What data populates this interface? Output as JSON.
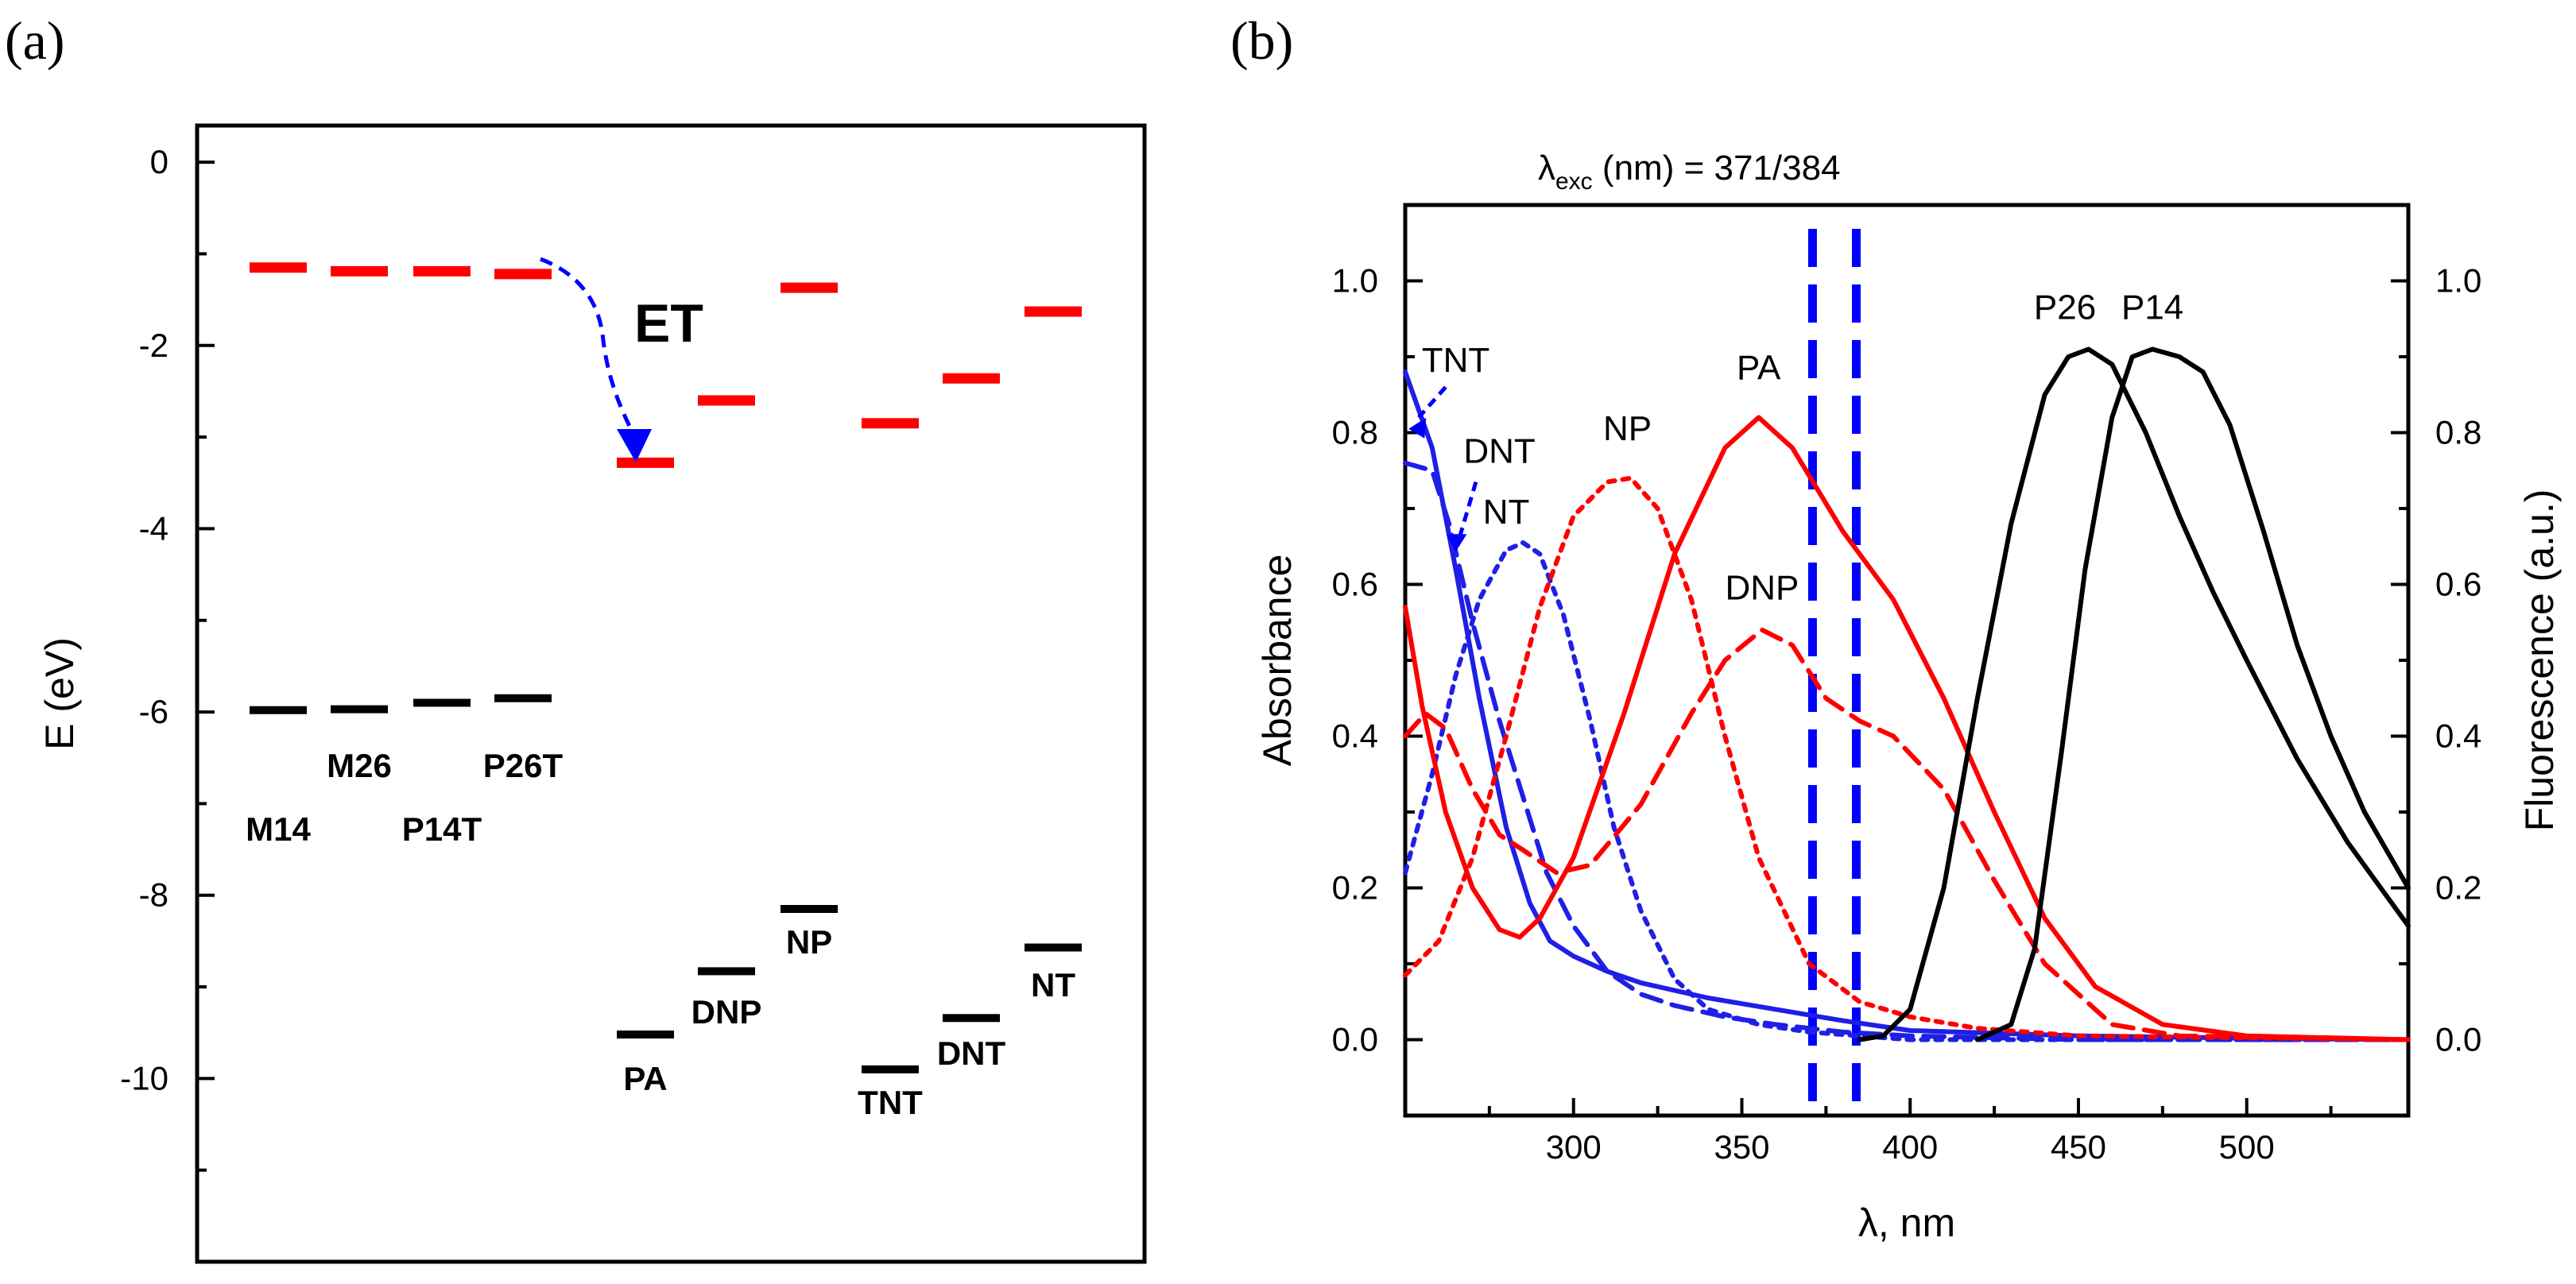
{
  "panel_labels": {
    "a": "(a)",
    "b": "(b)"
  },
  "colors": {
    "lumo": "#ff0000",
    "homo": "#000000",
    "blue": "#1f1fe6",
    "red": "#ff0000",
    "black": "#000000",
    "excitation": "#0000ff"
  },
  "chart_data": [
    {
      "type": "energy-level-diagram",
      "panel": "a",
      "ylabel": "E (eV)",
      "ylim": [
        -12,
        0.4
      ],
      "yticks": [
        "0",
        "-2",
        "-4",
        "-6",
        "-8",
        "-10"
      ],
      "ytick_values": [
        0,
        -2,
        -4,
        -6,
        -8,
        -10
      ],
      "annotation": "ET",
      "lumo_levels": [
        {
          "species": "M14",
          "energy": -1.15
        },
        {
          "species": "M26",
          "energy": -1.19
        },
        {
          "species": "P14T",
          "energy": -1.19
        },
        {
          "species": "P26T",
          "energy": -1.22
        },
        {
          "species": "PA",
          "energy": -3.28
        },
        {
          "species": "DNP",
          "energy": -2.6
        },
        {
          "species": "NP",
          "energy": -1.37
        },
        {
          "species": "TNT",
          "energy": -2.85
        },
        {
          "species": "DNT",
          "energy": -2.36
        },
        {
          "species": "NT",
          "energy": -1.63
        }
      ],
      "homo_levels": [
        {
          "species": "M14",
          "energy": -5.98
        },
        {
          "species": "M26",
          "energy": -5.97
        },
        {
          "species": "P14T",
          "energy": -5.9
        },
        {
          "species": "P26T",
          "energy": -5.85
        },
        {
          "species": "PA",
          "energy": -9.52
        },
        {
          "species": "DNP",
          "energy": -8.83
        },
        {
          "species": "NP",
          "energy": -8.15
        },
        {
          "species": "TNT",
          "energy": -9.9
        },
        {
          "species": "DNT",
          "energy": -9.34
        },
        {
          "species": "NT",
          "energy": -8.57
        }
      ],
      "labels": [
        "M14",
        "M26",
        "P14T",
        "P26T",
        "PA",
        "DNP",
        "NP",
        "TNT",
        "DNT",
        "NT"
      ]
    },
    {
      "type": "line",
      "panel": "b",
      "title": "λexc (nm) = 371/384",
      "title_main": "λ",
      "title_sub": "exc",
      "title_rest": " (nm) = 371/384",
      "xlabel": "λ, nm",
      "ylabel": "Absorbance",
      "y2label": "Fluorescence (a.u.)",
      "xlim": [
        250,
        548
      ],
      "ylim": [
        -0.1,
        1.1
      ],
      "xticks": [
        "300",
        "350",
        "400",
        "450",
        "500"
      ],
      "xtick_values": [
        300,
        350,
        400,
        450,
        500
      ],
      "yticks": [
        "0.0",
        "0.2",
        "0.4",
        "0.6",
        "0.8",
        "1.0"
      ],
      "ytick_values": [
        0,
        0.2,
        0.4,
        0.6,
        0.8,
        1.0
      ],
      "y2ticks": [
        "0.0",
        "0.2",
        "0.4",
        "0.6",
        "0.8",
        "1.0"
      ],
      "excitation_lines": [
        371,
        384
      ],
      "series": [
        {
          "name": "TNT",
          "color": "blue",
          "dash": "solid",
          "x": [
            250,
            258,
            265,
            272,
            280,
            287,
            293,
            300,
            310,
            320,
            340,
            360,
            380,
            400,
            450,
            500,
            548
          ],
          "y": [
            0.88,
            0.78,
            0.62,
            0.45,
            0.28,
            0.18,
            0.13,
            0.11,
            0.09,
            0.075,
            0.055,
            0.04,
            0.025,
            0.012,
            0.005,
            0.002,
            0.0
          ]
        },
        {
          "name": "DNT",
          "color": "blue",
          "dash": "dashed",
          "x": [
            250,
            258,
            263,
            270,
            278,
            285,
            292,
            300,
            310,
            320,
            330,
            345,
            360,
            380,
            400,
            450,
            548
          ],
          "y": [
            0.76,
            0.75,
            0.68,
            0.55,
            0.42,
            0.32,
            0.22,
            0.15,
            0.09,
            0.06,
            0.045,
            0.03,
            0.02,
            0.01,
            0.005,
            0.0,
            0.0
          ]
        },
        {
          "name": "NT",
          "color": "blue",
          "dash": "dotted",
          "x": [
            250,
            258,
            265,
            272,
            280,
            285,
            290,
            297,
            305,
            312,
            320,
            330,
            340,
            355,
            370,
            400,
            548
          ],
          "y": [
            0.22,
            0.35,
            0.48,
            0.58,
            0.645,
            0.655,
            0.64,
            0.56,
            0.42,
            0.28,
            0.17,
            0.08,
            0.04,
            0.02,
            0.01,
            0.0,
            0.0
          ]
        },
        {
          "name": "PA",
          "color": "red",
          "dash": "solid",
          "x": [
            250,
            255,
            262,
            270,
            278,
            284,
            290,
            300,
            315,
            330,
            345,
            355,
            365,
            380,
            395,
            410,
            425,
            440,
            455,
            475,
            500,
            548
          ],
          "y": [
            0.57,
            0.44,
            0.3,
            0.2,
            0.145,
            0.135,
            0.16,
            0.24,
            0.43,
            0.64,
            0.78,
            0.82,
            0.78,
            0.67,
            0.58,
            0.45,
            0.3,
            0.16,
            0.07,
            0.02,
            0.005,
            0.0
          ]
        },
        {
          "name": "NP",
          "color": "red",
          "dash": "dotted",
          "x": [
            250,
            260,
            270,
            280,
            290,
            300,
            310,
            317,
            325,
            335,
            345,
            355,
            370,
            385,
            400,
            420,
            450,
            548
          ],
          "y": [
            0.085,
            0.13,
            0.24,
            0.4,
            0.57,
            0.69,
            0.735,
            0.74,
            0.7,
            0.58,
            0.4,
            0.24,
            0.1,
            0.05,
            0.03,
            0.015,
            0.005,
            0.0
          ]
        },
        {
          "name": "DNP",
          "color": "red",
          "dash": "dashed",
          "x": [
            250,
            256,
            262,
            270,
            278,
            285,
            295,
            305,
            320,
            335,
            345,
            356,
            365,
            375,
            385,
            395,
            410,
            425,
            440,
            460,
            480,
            548
          ],
          "y": [
            0.4,
            0.43,
            0.41,
            0.33,
            0.27,
            0.25,
            0.22,
            0.23,
            0.31,
            0.43,
            0.5,
            0.54,
            0.52,
            0.45,
            0.42,
            0.4,
            0.33,
            0.21,
            0.1,
            0.02,
            0.005,
            0.0
          ]
        },
        {
          "name": "P26",
          "color": "black",
          "dash": "solid",
          "x": [
            385,
            392,
            400,
            410,
            420,
            430,
            440,
            447,
            453,
            460,
            470,
            480,
            490,
            500,
            515,
            530,
            548
          ],
          "y": [
            0.0,
            0.005,
            0.04,
            0.2,
            0.45,
            0.68,
            0.85,
            0.9,
            0.91,
            0.89,
            0.8,
            0.69,
            0.59,
            0.5,
            0.37,
            0.26,
            0.15
          ]
        },
        {
          "name": "P14",
          "color": "black",
          "dash": "solid",
          "x": [
            420,
            430,
            437,
            445,
            452,
            460,
            466,
            472,
            480,
            487,
            495,
            505,
            515,
            525,
            535,
            548
          ],
          "y": [
            0.0,
            0.02,
            0.12,
            0.38,
            0.62,
            0.82,
            0.9,
            0.91,
            0.9,
            0.88,
            0.81,
            0.67,
            0.52,
            0.4,
            0.3,
            0.2
          ]
        }
      ],
      "curve_labels": [
        {
          "text": "TNT",
          "x": 265,
          "y": 0.88
        },
        {
          "text": "DNT",
          "x": 278,
          "y": 0.76
        },
        {
          "text": "NT",
          "x": 280,
          "y": 0.68
        },
        {
          "text": "NP",
          "x": 316,
          "y": 0.79
        },
        {
          "text": "PA",
          "x": 355,
          "y": 0.87
        },
        {
          "text": "DNP",
          "x": 356,
          "y": 0.58
        },
        {
          "text": "P26",
          "x": 446,
          "y": 0.95
        },
        {
          "text": "P14",
          "x": 472,
          "y": 0.95
        }
      ]
    }
  ]
}
